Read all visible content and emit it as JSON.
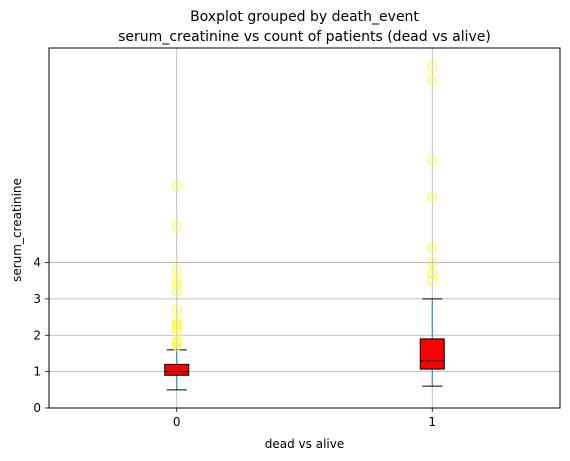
{
  "chart_data": {
    "type": "boxplot",
    "title": "Boxplot grouped by death_event",
    "subtitle": "serum_creatinine vs count of patients (dead vs alive)",
    "xlabel": "dead vs alive",
    "ylabel": "serum_creatinine",
    "categories": [
      "0",
      "1"
    ],
    "y_ticks": [
      0,
      1,
      2,
      3,
      4
    ],
    "ylim": [
      0,
      9.9
    ],
    "grid": true,
    "colors": {
      "box_fill": "#ff0000",
      "box_edge": "#000000",
      "whisker": "#1f77b4",
      "median": "#000000",
      "cap": "#000000",
      "flier": "#ffff00",
      "grid": "#b0b0b0"
    },
    "boxes": [
      {
        "category": "0",
        "whisker_low": 0.5,
        "q1": 0.9,
        "median": 1.0,
        "q3": 1.2,
        "whisker_high": 1.6,
        "fliers": [
          1.7,
          1.8,
          1.83,
          2.1,
          2.2,
          2.3,
          2.4,
          2.7,
          3.2,
          3.4,
          3.5,
          3.8,
          5.0,
          6.1
        ]
      },
      {
        "category": "1",
        "whisker_low": 0.6,
        "q1": 1.07,
        "median": 1.3,
        "q3": 1.9,
        "whisker_high": 3.0,
        "fliers": [
          3.5,
          3.7,
          4.0,
          4.4,
          5.8,
          6.8,
          9.0,
          9.4
        ]
      }
    ]
  }
}
